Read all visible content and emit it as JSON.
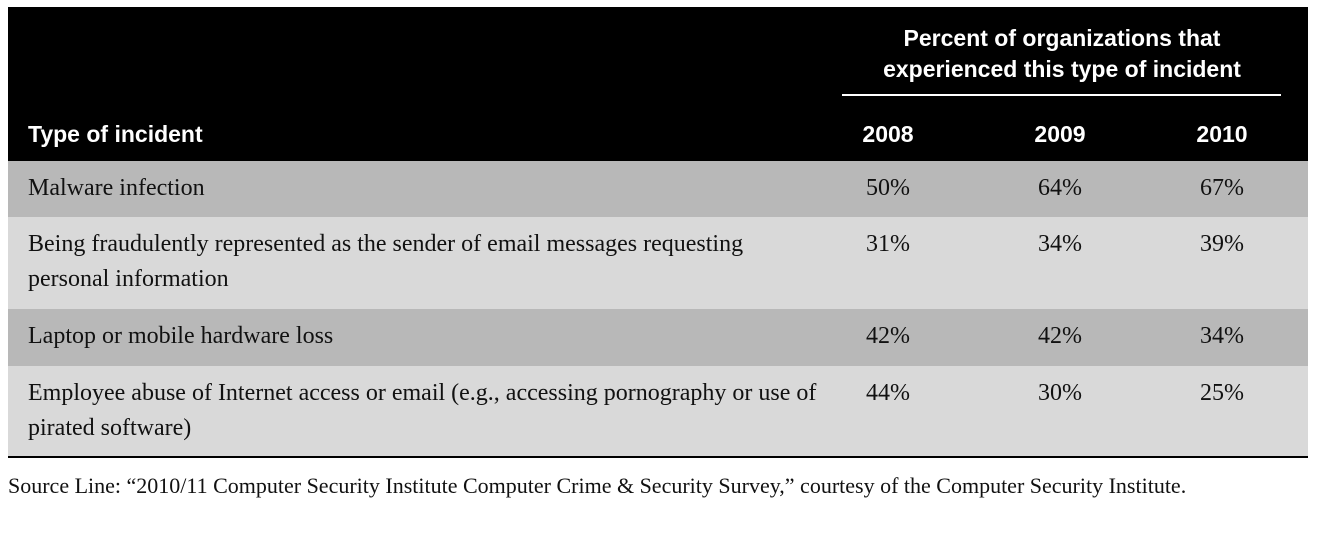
{
  "table": {
    "group_header": "Percent of organizations that experienced this type of incident",
    "group_header_line1": "Percent of organizations that",
    "group_header_line2": "experienced this type of incident",
    "col_type": "Type of incident",
    "years": [
      "2008",
      "2009",
      "2010"
    ],
    "rows": [
      {
        "type": "Malware infection",
        "values": [
          "50%",
          "64%",
          "67%"
        ]
      },
      {
        "type": "Being fraudulently represented as the sender of email messages requesting personal information",
        "values": [
          "31%",
          "34%",
          "39%"
        ]
      },
      {
        "type": "Laptop or mobile hardware loss",
        "values": [
          "42%",
          "42%",
          "34%"
        ]
      },
      {
        "type": "Employee abuse of Internet access or email (e.g., accessing pornography or use of pirated software)",
        "values": [
          "44%",
          "30%",
          "25%"
        ]
      }
    ]
  },
  "source_line": "Source Line: “2010/11 Computer Security Institute Computer Crime & Security Survey,” courtesy of the Computer Security Institute."
}
